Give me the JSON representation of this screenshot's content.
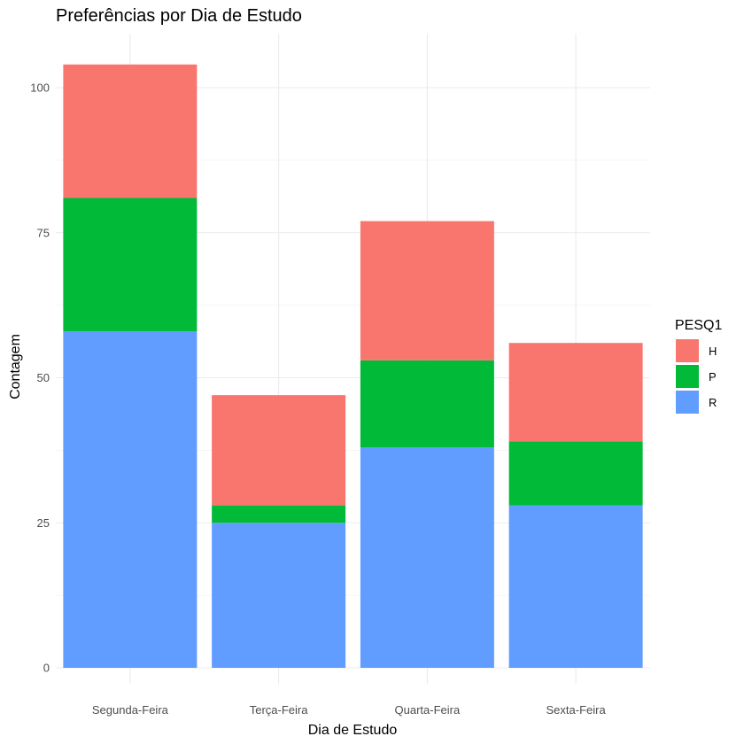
{
  "chart_data": {
    "type": "bar",
    "stacked": true,
    "title": "Preferências por Dia de Estudo",
    "xlabel": "Dia de Estudo",
    "ylabel": "Contagem",
    "categories": [
      "Segunda-Feira",
      "Terça-Feira",
      "Quarta-Feira",
      "Sexta-Feira"
    ],
    "series": [
      {
        "name": "R",
        "color": "#619CFF",
        "values": [
          58,
          25,
          38,
          28
        ]
      },
      {
        "name": "P",
        "color": "#00BA38",
        "values": [
          23,
          3,
          15,
          11
        ]
      },
      {
        "name": "H",
        "color": "#F8766D",
        "values": [
          23,
          19,
          24,
          17
        ]
      }
    ],
    "ylim": [
      0,
      105
    ],
    "yticks": [
      0,
      25,
      50,
      75,
      100
    ],
    "grid": true,
    "legend": {
      "title": "PESQ1",
      "position": "right",
      "order": [
        "H",
        "P",
        "R"
      ]
    }
  }
}
